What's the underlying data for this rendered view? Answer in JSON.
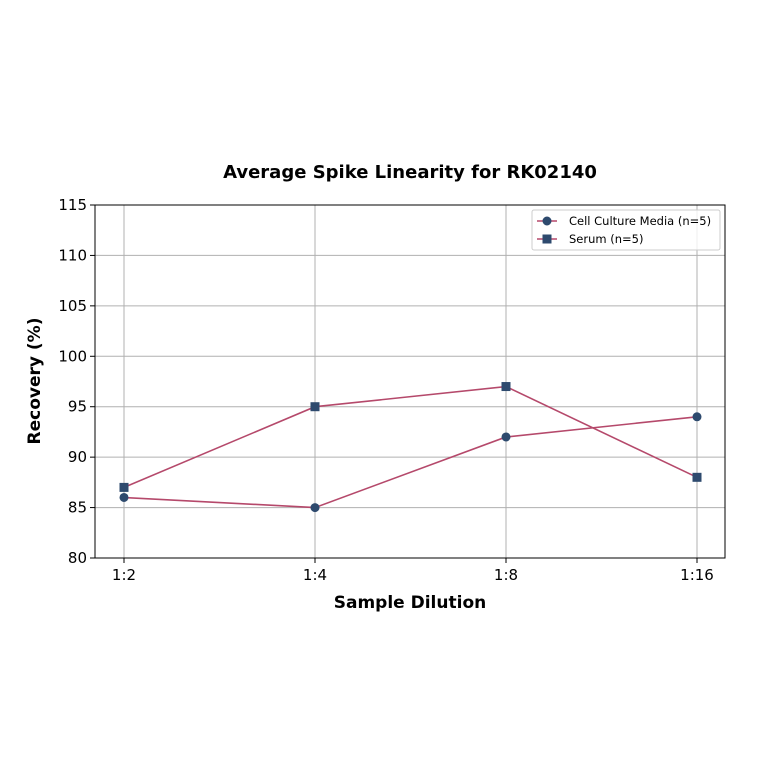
{
  "chart_data": {
    "type": "line",
    "title": "Average Spike Linearity for RK02140",
    "xlabel": "Sample Dilution",
    "ylabel": "Recovery (%)",
    "categories": [
      "1:2",
      "1:4",
      "1:8",
      "1:16"
    ],
    "ylim": [
      80,
      115
    ],
    "yticks": [
      80,
      85,
      90,
      95,
      100,
      105,
      110,
      115
    ],
    "grid": true,
    "legend_position": "upper right",
    "series": [
      {
        "name": "Cell Culture Media (n=5)",
        "marker": "circle",
        "values": [
          86,
          85,
          92,
          94
        ]
      },
      {
        "name": "Serum (n=5)",
        "marker": "square",
        "values": [
          87,
          95,
          97,
          88
        ]
      }
    ]
  },
  "colors": {
    "line": "#b5496b",
    "marker": "#2e4a6e",
    "grid": "#b0b0b0"
  }
}
